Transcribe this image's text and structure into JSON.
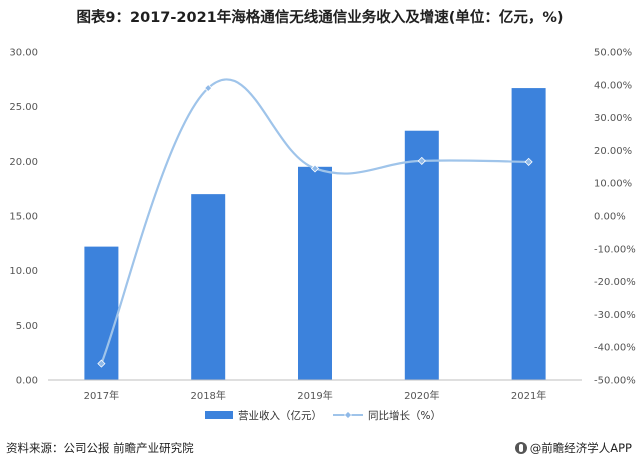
{
  "title": "图表9：2017-2021年海格通信无线通信业务收入及增速(单位：亿元，%)",
  "chart_data": {
    "type": "bar",
    "categories": [
      "2017年",
      "2018年",
      "2019年",
      "2020年",
      "2021年"
    ],
    "series": [
      {
        "name": "营业收入（亿元）",
        "type": "bar",
        "axis": "left",
        "values": [
          12.2,
          17.0,
          19.5,
          22.8,
          26.7
        ]
      },
      {
        "name": "同比增长（%）",
        "type": "line",
        "axis": "right",
        "values": [
          -45.0,
          39.0,
          14.5,
          16.8,
          16.5
        ]
      }
    ],
    "y_left": {
      "min": 0,
      "max": 30,
      "ticks": [
        "0.00",
        "5.00",
        "10.00",
        "15.00",
        "20.00",
        "25.00",
        "30.00"
      ]
    },
    "y_right": {
      "min": -50,
      "max": 50,
      "ticks": [
        "-50.00%",
        "-40.00%",
        "-30.00%",
        "-20.00%",
        "-10.00%",
        "0.00%",
        "10.00%",
        "20.00%",
        "30.00%",
        "40.00%",
        "50.00%"
      ]
    },
    "legend_position": "bottom",
    "colors": {
      "bar": "#3c82dc",
      "line": "#9fc4ea",
      "marker": "#8fb9e8"
    }
  },
  "footer": {
    "source": "资料来源：公司公报 前瞻产业研究院",
    "brand": "@前瞻经济学人APP"
  }
}
